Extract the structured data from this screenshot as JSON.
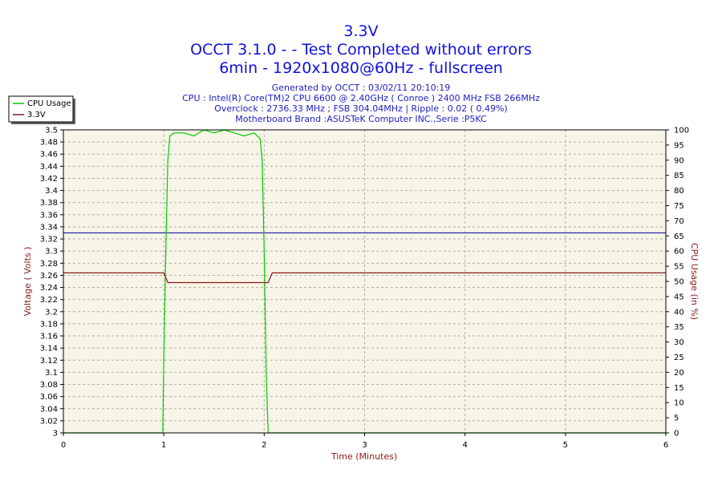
{
  "chart_data": {
    "type": "line",
    "title": "3.3V",
    "subtitle_lines": [
      "OCCT 3.1.0 -  - Test Completed without errors",
      "6min - 1920x1080@60Hz - fullscreen"
    ],
    "info_lines": [
      "Generated by OCCT : 03/02/11 20:10:19",
      "CPU : Intel(R) Core(TM)2 CPU 6600 @ 2.40GHz ( Conroe ) 2400 MHz FSB 266MHz",
      "Overclock : 2736.33 MHz ; FSB 304.04MHz | Ripple : 0.02 ( 0.49%)",
      "Motherboard Brand :ASUSTeK Computer INC.,Serie :P5KC"
    ],
    "xlabel": "Time (Minutes)",
    "ylabel": "Voltage ( Volts )",
    "y2label": "CPU Usage (in %)",
    "xlim": [
      0,
      6
    ],
    "ylim": [
      3.0,
      3.5
    ],
    "y2lim": [
      0,
      100
    ],
    "x_ticks": [
      "0",
      "1",
      "2",
      "3",
      "4",
      "5",
      "6"
    ],
    "y_ticks": [
      "3",
      "3.02",
      "3.04",
      "3.06",
      "3.08",
      "3.1",
      "3.12",
      "3.14",
      "3.16",
      "3.18",
      "3.2",
      "3.22",
      "3.24",
      "3.26",
      "3.28",
      "3.3",
      "3.32",
      "3.34",
      "3.36",
      "3.38",
      "3.4",
      "3.42",
      "3.44",
      "3.46",
      "3.48",
      "3.5"
    ],
    "y2_ticks": [
      "0",
      "5",
      "10",
      "15",
      "20",
      "25",
      "30",
      "35",
      "40",
      "45",
      "50",
      "55",
      "60",
      "65",
      "70",
      "75",
      "80",
      "85",
      "90",
      "95",
      "100"
    ],
    "grid": true,
    "legend_position": "top-left",
    "reference_line": {
      "y": 3.33,
      "color": "#2a2aa0"
    },
    "series": [
      {
        "name": "CPU Usage",
        "axis": "right",
        "color": "#00cc00",
        "x": [
          0,
          0.99,
          1.0,
          1.02,
          1.04,
          1.06,
          1.1,
          1.2,
          1.3,
          1.4,
          1.5,
          1.6,
          1.7,
          1.8,
          1.9,
          1.96,
          1.98,
          2.0,
          2.02,
          2.04,
          2.05,
          6
        ],
        "y": [
          0,
          0,
          25,
          60,
          90,
          98,
          99,
          99,
          98,
          100,
          99,
          100,
          99,
          98,
          99,
          97,
          90,
          60,
          20,
          0,
          0,
          0
        ]
      },
      {
        "name": "3.3V",
        "axis": "left",
        "color": "#8b1a1a",
        "x": [
          0,
          1.0,
          1.04,
          2.04,
          2.08,
          6
        ],
        "y": [
          3.264,
          3.264,
          3.248,
          3.248,
          3.264,
          3.264
        ]
      }
    ]
  },
  "colors": {
    "plot_bg": "#f7f5e7",
    "grid": "#b0b0a8"
  }
}
